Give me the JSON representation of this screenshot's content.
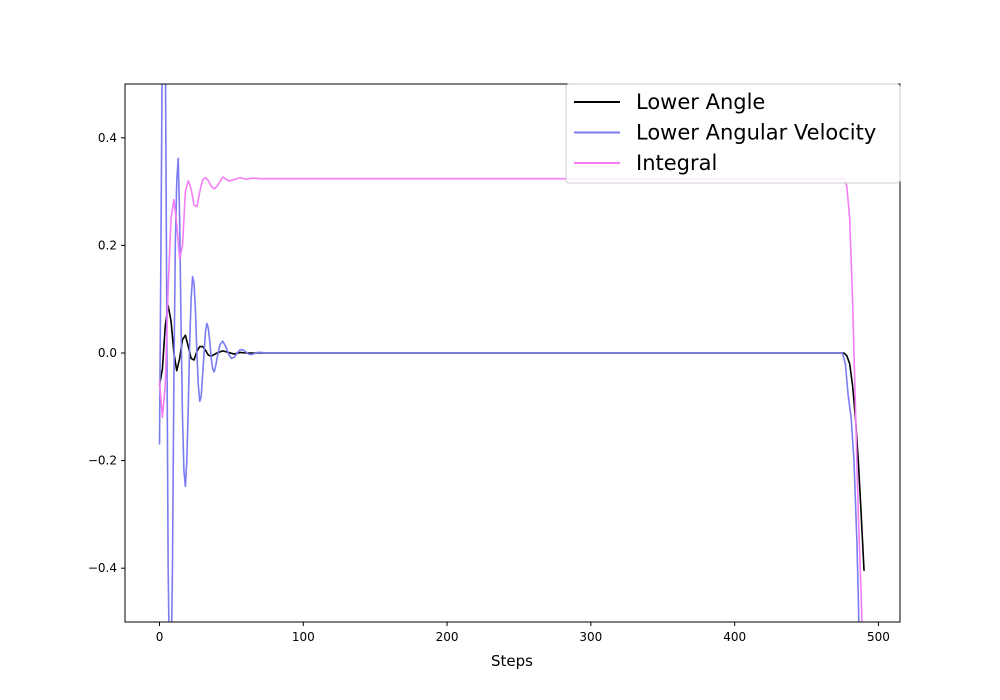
{
  "chart_data": {
    "type": "line",
    "title": "",
    "xlabel": "Steps",
    "ylabel": "",
    "xlim": [
      -24,
      515
    ],
    "ylim": [
      -0.5,
      0.5
    ],
    "xticks": [
      0,
      100,
      200,
      300,
      400,
      500
    ],
    "xtick_labels": [
      "0",
      "100",
      "200",
      "300",
      "400",
      "500"
    ],
    "yticks": [
      -0.4,
      -0.2,
      0.0,
      0.2,
      0.4
    ],
    "ytick_labels": [
      "−0.4",
      "−0.2",
      "0.0",
      "0.2",
      "0.4"
    ],
    "grid": false,
    "legend_position": "top-right",
    "series": [
      {
        "name": "Lower Angle",
        "color": "#000000",
        "x": [
          0,
          2,
          4,
          6,
          8,
          10,
          12,
          14,
          16,
          18,
          20,
          22,
          24,
          26,
          28,
          30,
          32,
          34,
          36,
          38,
          40,
          44,
          48,
          52,
          56,
          60,
          70,
          80,
          100,
          200,
          300,
          400,
          476,
          478,
          480,
          482,
          484,
          486,
          488,
          490
        ],
        "y": [
          -0.06,
          -0.03,
          0.05,
          0.088,
          0.06,
          0.0,
          -0.033,
          -0.01,
          0.025,
          0.033,
          0.012,
          -0.01,
          -0.013,
          0.003,
          0.012,
          0.012,
          0.005,
          -0.004,
          -0.006,
          -0.003,
          0.0,
          0.004,
          0.001,
          -0.002,
          0.001,
          0.0,
          0.0,
          0.0,
          0.0,
          0.0,
          0.0,
          0.0,
          0.0,
          -0.005,
          -0.02,
          -0.06,
          -0.12,
          -0.2,
          -0.3,
          -0.405
        ]
      },
      {
        "name": "Lower Angular Velocity",
        "color": "#7b7bf2",
        "x": [
          0,
          1,
          2,
          3,
          4,
          5,
          6,
          7,
          8,
          9,
          10,
          11,
          12,
          13,
          14,
          15,
          16,
          17,
          18,
          19,
          20,
          21,
          22,
          23,
          24,
          25,
          26,
          27,
          28,
          29,
          30,
          31,
          32,
          33,
          34,
          35,
          36,
          37,
          38,
          39,
          40,
          42,
          44,
          46,
          48,
          50,
          52,
          54,
          56,
          58,
          60,
          62,
          64,
          66,
          68,
          70,
          75,
          80,
          85,
          90,
          100,
          200,
          300,
          400,
          475,
          477,
          479,
          481,
          483,
          485,
          486,
          487
        ],
        "y": [
          -0.17,
          0.2,
          0.6,
          0.6,
          0.6,
          0.1,
          -0.4,
          -0.6,
          -0.6,
          -0.4,
          -0.05,
          0.2,
          0.32,
          0.362,
          0.25,
          0.05,
          -0.12,
          -0.22,
          -0.248,
          -0.2,
          -0.1,
          0.02,
          0.1,
          0.142,
          0.13,
          0.08,
          0.0,
          -0.06,
          -0.09,
          -0.08,
          -0.04,
          0.0,
          0.04,
          0.055,
          0.045,
          0.02,
          -0.01,
          -0.03,
          -0.035,
          -0.025,
          -0.01,
          0.015,
          0.022,
          0.012,
          -0.002,
          -0.01,
          -0.008,
          0.0,
          0.006,
          0.006,
          0.002,
          -0.002,
          -0.003,
          -0.001,
          0.001,
          0.001,
          0.0,
          0.0,
          0.0,
          0.0,
          0.0,
          0.0,
          0.0,
          0.0,
          0.0,
          -0.02,
          -0.08,
          -0.12,
          -0.2,
          -0.35,
          -0.45,
          -0.6
        ]
      },
      {
        "name": "Integral",
        "color": "#f57df5",
        "x": [
          0,
          2,
          4,
          6,
          8,
          10,
          12,
          14,
          16,
          18,
          20,
          22,
          24,
          26,
          28,
          30,
          32,
          34,
          36,
          38,
          40,
          44,
          48,
          52,
          56,
          60,
          65,
          70,
          80,
          100,
          200,
          300,
          400,
          476,
          478,
          480,
          482,
          484,
          486,
          488,
          489
        ],
        "y": [
          -0.05,
          -0.12,
          -0.06,
          0.12,
          0.25,
          0.285,
          0.24,
          0.175,
          0.2,
          0.3,
          0.32,
          0.305,
          0.275,
          0.272,
          0.3,
          0.322,
          0.326,
          0.32,
          0.31,
          0.305,
          0.31,
          0.327,
          0.32,
          0.322,
          0.326,
          0.323,
          0.325,
          0.324,
          0.324,
          0.324,
          0.324,
          0.324,
          0.324,
          0.324,
          0.31,
          0.25,
          0.1,
          -0.1,
          -0.3,
          -0.45,
          -0.55
        ]
      }
    ]
  }
}
